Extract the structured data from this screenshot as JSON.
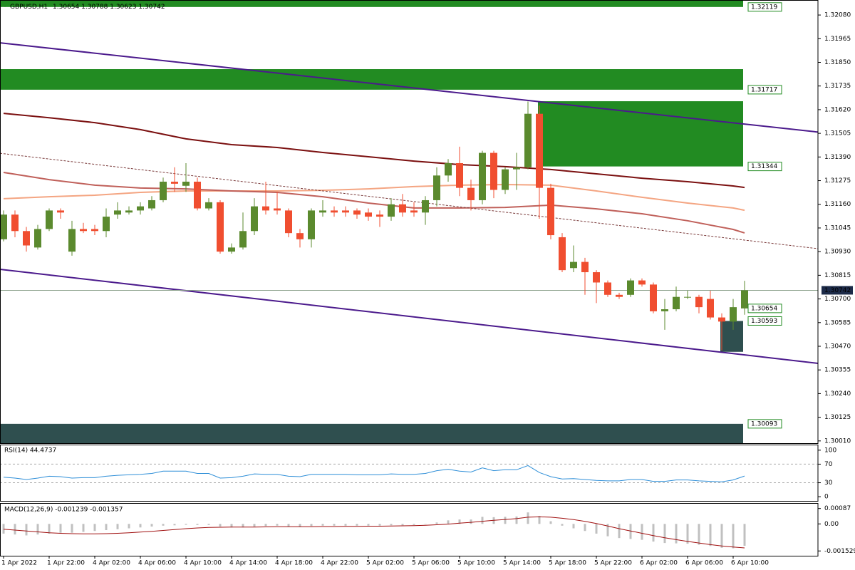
{
  "header": {
    "symbol": "GBPUSD,H1",
    "open": "1.30654",
    "high": "1.30788",
    "low": "1.30623",
    "close": "1.30742"
  },
  "chart_data": [
    {
      "type": "candlestick",
      "categories": [
        "1 Apr 2022",
        null,
        null,
        null,
        "1 Apr 22:00",
        null,
        null,
        null,
        "4 Apr 02:00",
        null,
        null,
        null,
        "4 Apr 06:00",
        null,
        null,
        null,
        "4 Apr 10:00",
        null,
        null,
        null,
        "4 Apr 14:00",
        null,
        null,
        null,
        "4 Apr 18:00",
        null,
        null,
        null,
        "4 Apr 22:00",
        null,
        null,
        null,
        "5 Apr 02:00",
        null,
        null,
        null,
        "5 Apr 06:00",
        null,
        null,
        null,
        "5 Apr 10:00",
        null,
        null,
        null,
        "5 Apr 14:00",
        null,
        null,
        null,
        "5 Apr 18:00",
        null,
        null,
        null,
        "5 Apr 22:00",
        null,
        null,
        null,
        "6 Apr 02:00",
        null,
        null,
        null,
        "6 Apr 06:00",
        null,
        null,
        null,
        "6 Apr 10:00",
        null
      ],
      "open": [
        1.3099,
        1.3111,
        1.3103,
        1.3095,
        1.3104,
        1.3113,
        1.3093,
        1.3104,
        1.3104,
        1.3103,
        1.3111,
        1.3112,
        1.3113,
        1.3114,
        1.3118,
        1.3127,
        1.3125,
        1.3127,
        1.3114,
        1.3117,
        1.3093,
        1.3095,
        1.3103,
        1.3115,
        1.3114,
        1.3113,
        1.3102,
        1.3099,
        1.3112,
        1.3113,
        1.3113,
        1.3113,
        1.3112,
        1.3111,
        1.311,
        1.3116,
        1.3113,
        1.3112,
        1.3118,
        1.313,
        1.3136,
        1.3124,
        1.3118,
        1.3141,
        1.3123,
        1.3133,
        1.3134,
        1.316,
        1.3124,
        1.31,
        1.3085,
        1.3088,
        1.3083,
        1.3078,
        1.3072,
        1.3072,
        1.3079,
        1.3077,
        1.3064,
        1.3065,
        1.3071,
        1.3071,
        1.307,
        1.3061,
        1.3059,
        1.30654
      ],
      "high": [
        1.3113,
        1.3113,
        1.3105,
        1.3106,
        1.3114,
        1.3114,
        1.3108,
        1.3107,
        1.3106,
        1.3114,
        1.3117,
        1.3115,
        1.3117,
        1.312,
        1.3129,
        1.3134,
        1.3136,
        1.3129,
        1.3119,
        1.3118,
        1.3097,
        1.3112,
        1.3119,
        1.3127,
        1.3122,
        1.3114,
        1.3104,
        1.3114,
        1.3118,
        1.3115,
        1.3115,
        1.3114,
        1.3114,
        1.3113,
        1.3119,
        1.3121,
        1.3117,
        1.312,
        1.3134,
        1.3138,
        1.3144,
        1.3128,
        1.3142,
        1.3142,
        1.3134,
        1.3141,
        1.3166,
        1.3164,
        1.3126,
        1.3102,
        1.3096,
        1.309,
        1.3084,
        1.3079,
        1.3073,
        1.308,
        1.308,
        1.3078,
        1.307,
        1.3076,
        1.3074,
        1.3072,
        1.3074,
        1.3063,
        1.307,
        1.30788
      ],
      "low": [
        1.3098,
        1.31,
        1.3093,
        1.3094,
        1.3103,
        1.3109,
        1.3091,
        1.3102,
        1.3101,
        1.31,
        1.3109,
        1.3111,
        1.3111,
        1.3113,
        1.3117,
        1.3122,
        1.3122,
        1.3113,
        1.3113,
        1.3092,
        1.3092,
        1.3094,
        1.3101,
        1.3111,
        1.3111,
        1.31,
        1.3095,
        1.3095,
        1.311,
        1.311,
        1.311,
        1.3109,
        1.3108,
        1.3105,
        1.3108,
        1.311,
        1.311,
        1.3106,
        1.3115,
        1.3127,
        1.312,
        1.3113,
        1.3116,
        1.3119,
        1.3121,
        1.3123,
        1.3133,
        1.3109,
        1.3099,
        1.3083,
        1.3083,
        1.3072,
        1.3068,
        1.3071,
        1.307,
        1.3071,
        1.3076,
        1.3063,
        1.3055,
        1.3064,
        1.307,
        1.3063,
        1.306,
        1.3045,
        1.3055,
        1.30623
      ],
      "close": [
        1.3111,
        1.3103,
        1.3096,
        1.3104,
        1.3113,
        1.3112,
        1.3104,
        1.3103,
        1.3103,
        1.311,
        1.3113,
        1.3113,
        1.3115,
        1.3118,
        1.3127,
        1.3126,
        1.3127,
        1.3114,
        1.3117,
        1.3093,
        1.3095,
        1.3103,
        1.3115,
        1.3113,
        1.3113,
        1.3102,
        1.3099,
        1.3113,
        1.3113,
        1.3112,
        1.3112,
        1.3111,
        1.311,
        1.311,
        1.3116,
        1.3112,
        1.3112,
        1.3118,
        1.313,
        1.3136,
        1.3124,
        1.3118,
        1.3141,
        1.3123,
        1.3133,
        1.3134,
        1.316,
        1.3124,
        1.3101,
        1.3084,
        1.3088,
        1.3083,
        1.3078,
        1.3072,
        1.3071,
        1.3079,
        1.3077,
        1.3064,
        1.3065,
        1.3071,
        1.3071,
        1.3066,
        1.3061,
        1.3059,
        1.3066,
        1.30742
      ],
      "up_color": "#5b8a2e",
      "down_color": "#f04e30",
      "ylim": [
        1.29999,
        1.32153
      ],
      "yticks": [
        {
          "value": 1.3208,
          "label": "1.32080"
        },
        1.31965,
        {
          "value": 1.3185,
          "label": "1.31850"
        },
        1.31735,
        {
          "value": 1.3162,
          "label": "1.31620"
        },
        1.31505,
        {
          "value": 1.3139,
          "label": "1.31390"
        },
        1.31275,
        {
          "value": 1.3116,
          "label": "1.31160"
        },
        1.31045,
        {
          "value": 1.3093,
          "label": "1.30930"
        },
        1.30815,
        {
          "value": 1.307,
          "label": "1.30700"
        },
        1.30585,
        {
          "value": 1.3047,
          "label": "1.30470"
        },
        1.30355,
        {
          "value": 1.3024,
          "label": "1.30240"
        },
        1.30125,
        {
          "value": 1.3001,
          "label": "1.30010"
        }
      ],
      "levels": [
        1.32119,
        1.31717,
        1.31344,
        1.30654,
        1.30593,
        1.30093
      ],
      "level_color": "#228b22",
      "current_price": 1.30742,
      "zones": [
        {
          "top": 1.32153,
          "bottom": 1.32119,
          "color": "#228b22"
        },
        {
          "top": 1.31817,
          "bottom": 1.31717,
          "color": "#228b22"
        },
        {
          "top": 1.31661,
          "bottom": 1.31344,
          "start": 47,
          "color": "#228b22"
        },
        {
          "top": 1.30593,
          "bottom": 1.30443,
          "start": 63,
          "color": "#2f4f4f"
        },
        {
          "top": 1.30093,
          "bottom": 1.29999,
          "color": "#2f4f4f"
        }
      ],
      "trendlines": [
        {
          "x": [
            0,
            65
          ],
          "y": [
            1.31943,
            1.3155
          ],
          "color": "#4b1a8c",
          "dash": false
        },
        {
          "x": [
            0,
            65
          ],
          "y": [
            1.30842,
            1.30428
          ],
          "color": "#4b1a8c",
          "dash": false
        },
        {
          "x": [
            0,
            65
          ],
          "y": [
            1.31406,
            1.30986
          ],
          "color": "#7a3a3a",
          "dash": true
        }
      ],
      "series": [
        {
          "color": "#7b1010",
          "x": [
            0,
            4,
            8,
            12,
            16,
            20,
            24,
            28,
            32,
            36,
            40,
            44,
            48,
            52,
            56,
            60,
            64,
            65
          ],
          "values": [
            1.31602,
            1.31581,
            1.31557,
            1.31523,
            1.31478,
            1.3145,
            1.31436,
            1.31412,
            1.31391,
            1.3137,
            1.31353,
            1.31343,
            1.31329,
            1.31308,
            1.31287,
            1.3127,
            1.31249,
            1.31242
          ]
        },
        {
          "color": "#f4a582",
          "x": [
            0,
            4,
            8,
            12,
            16,
            20,
            24,
            28,
            32,
            36,
            40,
            44,
            48,
            52,
            56,
            60,
            64,
            65
          ],
          "values": [
            1.31187,
            1.31197,
            1.31204,
            1.31218,
            1.31225,
            1.31225,
            1.31225,
            1.31228,
            1.31235,
            1.31246,
            1.31253,
            1.31256,
            1.31253,
            1.31225,
            1.31194,
            1.31166,
            1.31142,
            1.31131
          ]
        },
        {
          "color": "#c0605a",
          "x": [
            0,
            4,
            8,
            12,
            16,
            20,
            24,
            28,
            32,
            36,
            40,
            44,
            48,
            52,
            56,
            60,
            64,
            65
          ],
          "values": [
            1.31315,
            1.3128,
            1.31253,
            1.31239,
            1.31235,
            1.31225,
            1.31218,
            1.31197,
            1.31166,
            1.31142,
            1.31142,
            1.31145,
            1.31156,
            1.31138,
            1.31114,
            1.3108,
            1.31038,
            1.31021
          ]
        }
      ]
    },
    {
      "type": "line",
      "title": "RSI(14) 44.4737",
      "series": [
        {
          "color": "#2f8fd8",
          "values": [
            42,
            40,
            37,
            40,
            44,
            43,
            40,
            41,
            41,
            44,
            46,
            47,
            48,
            50,
            55,
            55,
            55,
            50,
            50,
            40,
            41,
            44,
            49,
            48,
            48,
            44,
            43,
            48,
            48,
            48,
            48,
            47,
            47,
            47,
            49,
            48,
            48,
            50,
            56,
            59,
            55,
            53,
            62,
            56,
            58,
            58,
            67,
            52,
            43,
            38,
            39,
            37,
            35,
            34,
            34,
            37,
            37,
            33,
            33,
            36,
            36,
            34,
            33,
            32,
            36,
            44.4737
          ]
        }
      ],
      "ylim": [
        -9,
        112
      ],
      "yticks": [
        100,
        70,
        30,
        0
      ],
      "levels": [
        70,
        30
      ]
    },
    {
      "type": "macd",
      "title": "MACD(12,26,9) -0.001239 -0.001357",
      "histogram": [
        -0.00055,
        -0.0006,
        -0.00065,
        -0.0006,
        -0.00055,
        -0.0005,
        -0.0005,
        -0.00045,
        -0.0004,
        -0.00035,
        -0.0003,
        -0.00025,
        -0.0002,
        -0.00015,
        -0.0001,
        -8e-05,
        -5e-05,
        -6e-05,
        -6e-05,
        -0.00015,
        -0.0002,
        -0.0002,
        -0.00015,
        -0.00012,
        -0.0001,
        -0.00015,
        -0.00018,
        -0.00012,
        -0.0001,
        -0.0001,
        -0.0001,
        -0.0001,
        -0.0001,
        -0.0001,
        -8e-05,
        -8e-05,
        -6e-05,
        -2e-05,
        8e-05,
        0.0002,
        0.00025,
        0.00025,
        0.0004,
        0.00038,
        0.0004,
        0.00042,
        0.00065,
        0.00045,
        0.00015,
        -0.0001,
        -0.00025,
        -0.0004,
        -0.00055,
        -0.0007,
        -0.0008,
        -0.00085,
        -0.0009,
        -0.001,
        -0.00108,
        -0.0011,
        -0.00112,
        -0.00118,
        -0.00125,
        -0.00135,
        -0.00138,
        -0.001239
      ],
      "signal": [
        -0.0003,
        -0.00035,
        -0.0004,
        -0.00045,
        -0.0005,
        -0.00053,
        -0.00055,
        -0.00056,
        -0.00056,
        -0.00055,
        -0.00053,
        -0.0005,
        -0.00046,
        -0.00042,
        -0.00037,
        -0.00032,
        -0.00027,
        -0.00023,
        -0.0002,
        -0.00019,
        -0.00018,
        -0.00018,
        -0.00018,
        -0.00017,
        -0.00016,
        -0.00016,
        -0.00016,
        -0.00016,
        -0.00015,
        -0.00015,
        -0.00014,
        -0.00014,
        -0.00013,
        -0.00013,
        -0.00012,
        -0.00011,
        -0.0001,
        -8e-05,
        -5e-05,
        -1e-05,
        4e-05,
        9e-05,
        0.00015,
        0.0002,
        0.00025,
        0.0003,
        0.00038,
        0.0004,
        0.00038,
        0.00032,
        0.00024,
        0.00014,
        2e-05,
        -0.00012,
        -0.00027,
        -0.0004,
        -0.00053,
        -0.00066,
        -0.00078,
        -0.00089,
        -0.00099,
        -0.00108,
        -0.00117,
        -0.00125,
        -0.00131,
        -0.001357
      ],
      "hist_color": "#c0c0c0",
      "signal_color": "#a01010",
      "ylim": [
        -0.0018,
        0.00118
      ],
      "yticks": [
        0.00087,
        {
          "value": 0,
          "label": "0.00"
        },
        -0.001529
      ]
    }
  ]
}
